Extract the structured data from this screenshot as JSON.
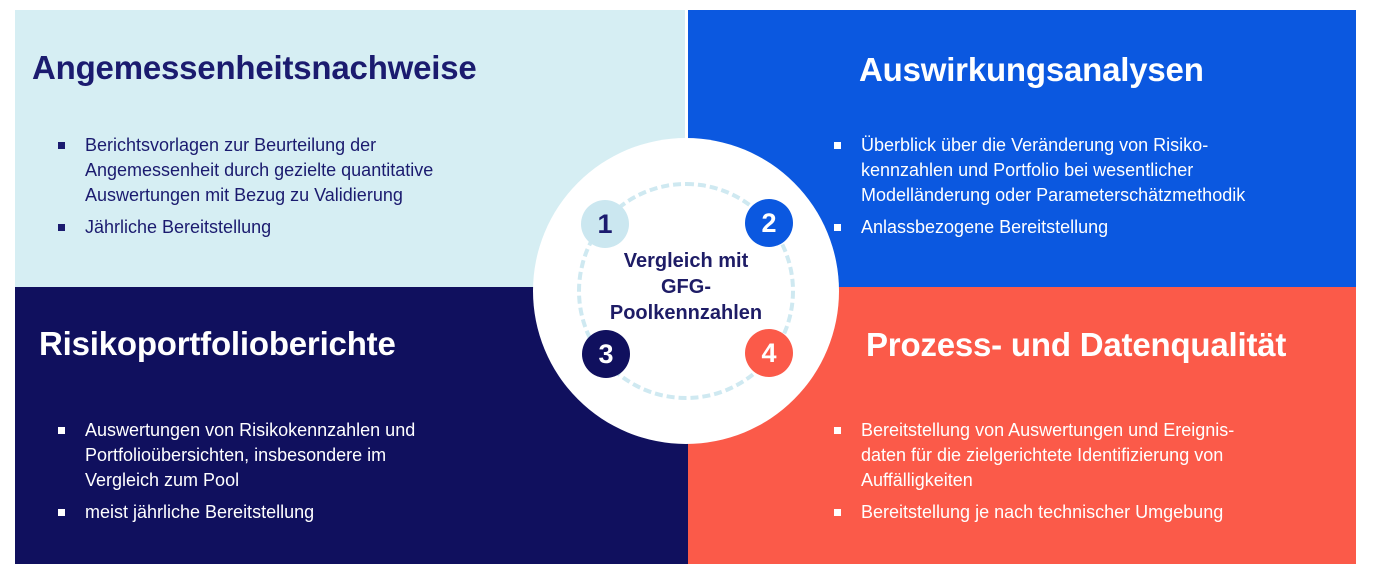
{
  "palette": {
    "light_cyan": "#d6eef3",
    "blue": "#0b58e0",
    "navy": "#10105e",
    "coral": "#fb5a49",
    "navy_text": "#1b1b6f",
    "badge_light": "#cbe7f0",
    "dash_ring": "#cfe9f1",
    "white": "#ffffff"
  },
  "quadrants": [
    {
      "id": "angemessenheitsnachweise",
      "number": "1",
      "title": "Angemessenheitsnachweise",
      "bullets": [
        "Berichtsvorlagen zur Beurteilung der\nAngemessenheit durch gezielte quantitative\nAuswertungen mit Bezug zu Validierung",
        "Jährliche Bereitstellung"
      ]
    },
    {
      "id": "auswirkungsanalysen",
      "number": "2",
      "title": "Auswirkungsanalysen",
      "bullets": [
        "Überblick über die Veränderung von Risiko-\nkennzahlen und Portfolio bei wesentlicher\nModelländerung oder Parameterschätzmethodik",
        "Anlassbezogene Bereitstellung"
      ]
    },
    {
      "id": "risikoportfolioberichte",
      "number": "3",
      "title": "Risikoportfolioberichte",
      "bullets": [
        "Auswertungen von Risikokennzahlen und\nPortfolioübersichten, insbesondere im\nVergleich zum Pool",
        "meist jährliche Bereitstellung"
      ]
    },
    {
      "id": "prozess-und-datenqualitaet",
      "number": "4",
      "title": "Prozess- und Datenqualität",
      "bullets": [
        "Bereitstellung von Auswertungen und Ereignis-\ndaten für die zielgerichtete Identifizierung von\nAuffälligkeiten",
        "Bereitstellung je nach technischer Umgebung"
      ]
    }
  ],
  "center": {
    "lines": [
      "Vergleich mit",
      "GFG-",
      "Poolkennzahlen"
    ],
    "badges": [
      "1",
      "2",
      "3",
      "4"
    ]
  }
}
